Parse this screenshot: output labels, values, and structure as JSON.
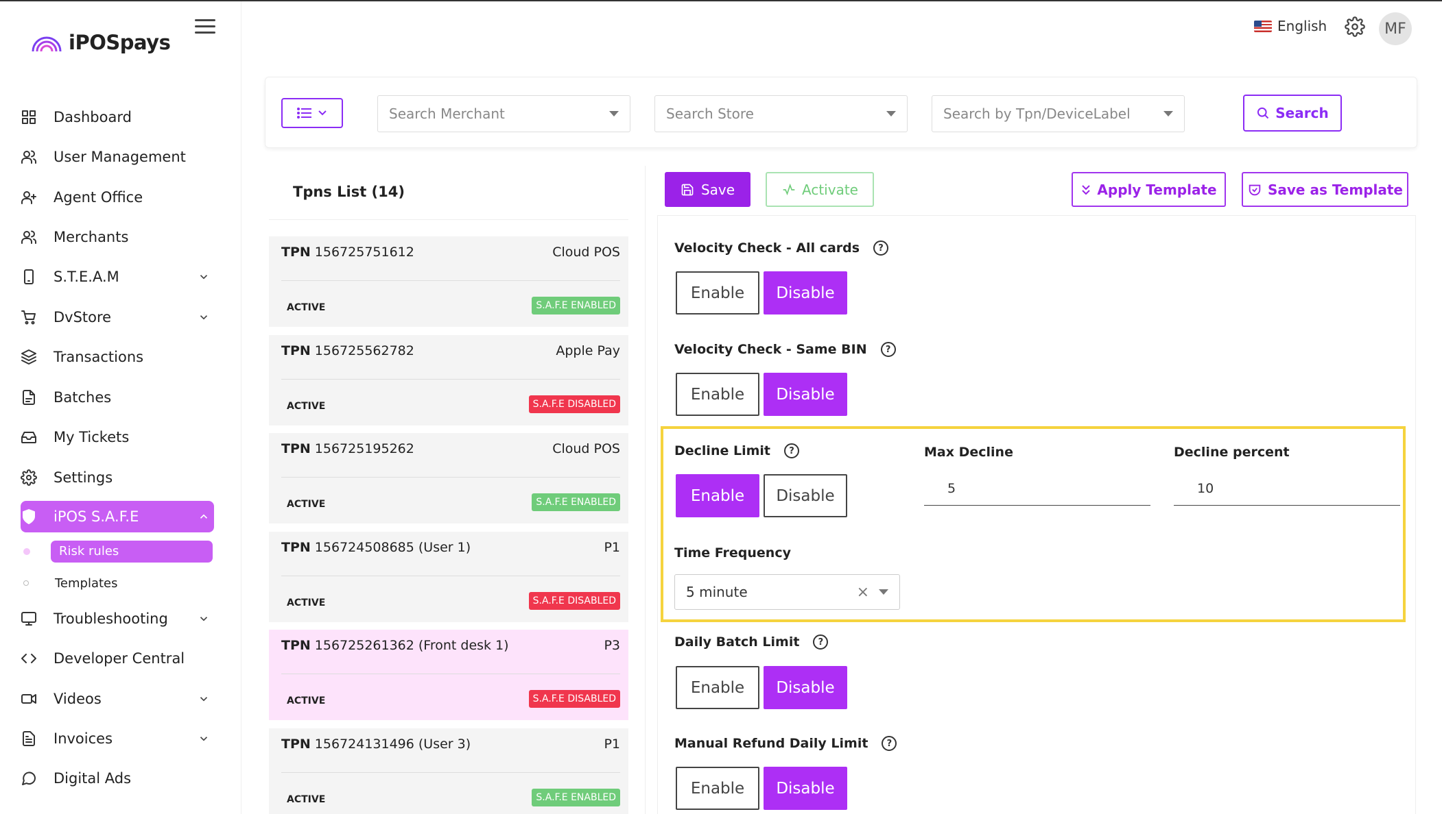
{
  "app": {
    "brand": "iPOSpays"
  },
  "topbar": {
    "language": "English",
    "avatar_initials": "MF"
  },
  "sidebar": {
    "items": [
      {
        "label": "Dashboard",
        "icon": "grid-icon"
      },
      {
        "label": "User Management",
        "icon": "users-icon"
      },
      {
        "label": "Agent Office",
        "icon": "user-plus-icon"
      },
      {
        "label": "Merchants",
        "icon": "users-icon"
      },
      {
        "label": "S.T.E.A.M",
        "icon": "mobile-icon",
        "expandable": true
      },
      {
        "label": "DvStore",
        "icon": "cart-icon",
        "expandable": true
      },
      {
        "label": "Transactions",
        "icon": "layers-icon"
      },
      {
        "label": "Batches",
        "icon": "file-icon"
      },
      {
        "label": "My Tickets",
        "icon": "inbox-icon"
      },
      {
        "label": "Settings",
        "icon": "gear-icon"
      },
      {
        "label": "iPOS S.A.F.E",
        "icon": "shield-icon",
        "expandable": true,
        "active": true
      },
      {
        "label": "Troubleshooting",
        "icon": "monitor-icon",
        "expandable": true
      },
      {
        "label": "Developer Central",
        "icon": "code-icon"
      },
      {
        "label": "Videos",
        "icon": "video-icon",
        "expandable": true
      },
      {
        "label": "Invoices",
        "icon": "invoice-icon",
        "expandable": true
      },
      {
        "label": "Digital Ads",
        "icon": "chat-icon"
      }
    ],
    "safe_sub": [
      {
        "label": "Risk rules",
        "active": true
      },
      {
        "label": "Templates",
        "active": false
      }
    ]
  },
  "filters": {
    "merchant_placeholder": "Search Merchant",
    "store_placeholder": "Search Store",
    "tpn_placeholder": "Search by Tpn/DeviceLabel",
    "search_label": "Search"
  },
  "tpn_list": {
    "title": "Tpns List (14)",
    "tpn_prefix": "TPN",
    "items": [
      {
        "id": "156725751612",
        "type": "Cloud POS",
        "status": "ACTIVE",
        "safe": "S.A.F.E ENABLED",
        "enabled": true,
        "selected": false
      },
      {
        "id": "156725562782",
        "type": "Apple Pay",
        "status": "ACTIVE",
        "safe": "S.A.F.E DISABLED",
        "enabled": false,
        "selected": false
      },
      {
        "id": "156725195262",
        "type": "Cloud POS",
        "status": "ACTIVE",
        "safe": "S.A.F.E ENABLED",
        "enabled": true,
        "selected": false
      },
      {
        "id": "156724508685 (User 1)",
        "type": "P1",
        "status": "ACTIVE",
        "safe": "S.A.F.E DISABLED",
        "enabled": false,
        "selected": false
      },
      {
        "id": "156725261362 (Front desk 1)",
        "type": "P3",
        "status": "ACTIVE",
        "safe": "S.A.F.E DISABLED",
        "enabled": false,
        "selected": true
      },
      {
        "id": "156724131496 (User 3)",
        "type": "P1",
        "status": "ACTIVE",
        "safe": "S.A.F.E ENABLED",
        "enabled": true,
        "selected": false
      }
    ]
  },
  "actions": {
    "save": "Save",
    "activate": "Activate",
    "apply_template": "Apply Template",
    "save_as_template": "Save as Template"
  },
  "toggle_labels": {
    "enable": "Enable",
    "disable": "Disable"
  },
  "rules": {
    "velocity_all": {
      "label": "Velocity Check - All cards",
      "state": "disable"
    },
    "velocity_bin": {
      "label": "Velocity Check - Same BIN",
      "state": "disable"
    },
    "decline_limit": {
      "label": "Decline Limit",
      "state": "enable",
      "max_decline_label": "Max Decline",
      "max_decline_value": "5",
      "decline_percent_label": "Decline percent",
      "decline_percent_value": "10",
      "time_frequency_label": "Time Frequency",
      "time_frequency_value": "5 minute"
    },
    "daily_batch": {
      "label": "Daily Batch Limit",
      "state": "disable"
    },
    "manual_refund": {
      "label": "Manual Refund Daily Limit",
      "state": "disable"
    }
  },
  "colors": {
    "brand_purple": "#9b22e8",
    "nav_active": "#c85ef4",
    "badge_enabled": "#6fcc7a",
    "badge_disabled": "#f0364d",
    "highlight": "#f5d33e",
    "selected_row": "#fde3fb"
  }
}
